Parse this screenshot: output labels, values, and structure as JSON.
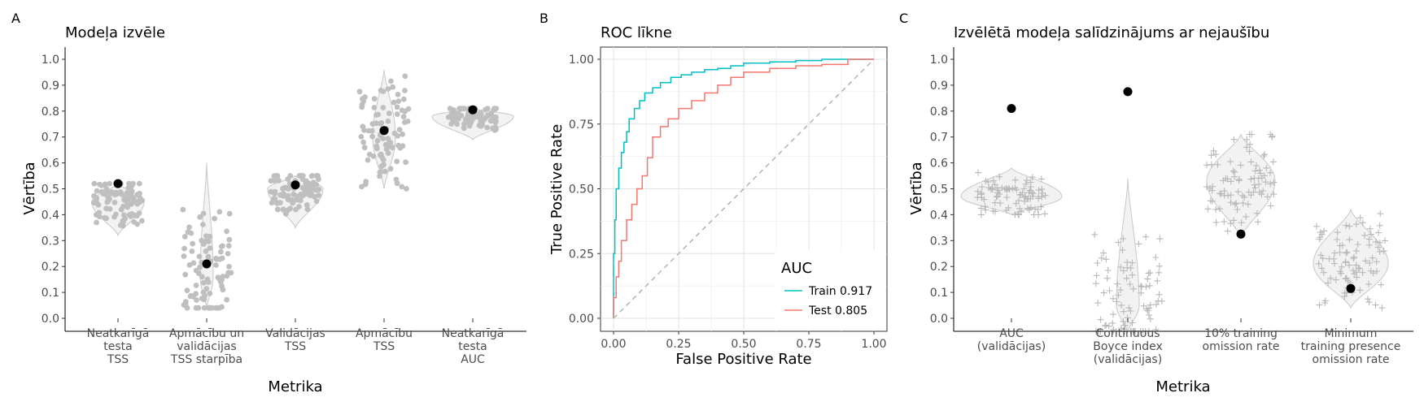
{
  "panels": {
    "A": {
      "tag": "A",
      "title": "Modeļa izvēle",
      "xlabel": "Metrika",
      "ylabel": "Vērtība",
      "yticks": [
        "0.0",
        "0.1",
        "0.2",
        "0.3",
        "0.4",
        "0.5",
        "0.6",
        "0.7",
        "0.8",
        "0.9",
        "1.0"
      ],
      "categories": [
        [
          "Neatkarīgā",
          "testa",
          "TSS"
        ],
        [
          "Apmācību un",
          "validācijas",
          "TSS starpība"
        ],
        [
          "Validācijas",
          "TSS"
        ],
        [
          "Apmācību",
          "TSS"
        ],
        [
          "Neatkarīgā",
          "testa",
          "AUC"
        ]
      ]
    },
    "B": {
      "tag": "B",
      "title": "ROC līkne",
      "xlabel": "False Positive Rate",
      "ylabel": "True Positive Rate",
      "xticks": [
        "0.00",
        "0.25",
        "0.50",
        "0.75",
        "1.00"
      ],
      "yticks": [
        "0.00",
        "0.25",
        "0.50",
        "0.75",
        "1.00"
      ],
      "legend_title": "AUC",
      "legend_items": [
        "Train 0.917",
        "Test 0.805"
      ]
    },
    "C": {
      "tag": "C",
      "title": "Izvēlētā modeļa salīdzinājums ar nejaušību",
      "xlabel": "Metrika",
      "ylabel": "Vērtība",
      "yticks": [
        "0.0",
        "0.1",
        "0.2",
        "0.3",
        "0.4",
        "0.5",
        "0.6",
        "0.7",
        "0.8",
        "0.9",
        "1.0"
      ],
      "categories": [
        [
          "AUC",
          "(validācijas)"
        ],
        [
          "Continuous",
          "Boyce index",
          "(validācijas)"
        ],
        [
          "10% training",
          "omission rate"
        ],
        [
          "Minimum",
          "training presence",
          "omission rate"
        ]
      ]
    }
  },
  "chart_data": [
    {
      "type": "violin",
      "panel": "A",
      "title": "Modeļa izvēle",
      "xlabel": "Metrika",
      "ylabel": "Vērtība",
      "ylim": [
        0,
        1
      ],
      "grid": false,
      "categories": [
        "Neatkarīgā testa TSS",
        "Apmācību un validācijas TSS starpība",
        "Validācijas TSS",
        "Apmācību TSS",
        "Neatkarīgā testa AUC"
      ],
      "distribution_ranges": [
        [
          0.32,
          0.52
        ],
        [
          0.04,
          0.6
        ],
        [
          0.35,
          0.55
        ],
        [
          0.5,
          0.96
        ],
        [
          0.69,
          0.81
        ]
      ],
      "distribution_centers": [
        0.45,
        0.16,
        0.5,
        0.7,
        0.78
      ],
      "selected_values": [
        0.52,
        0.21,
        0.515,
        0.725,
        0.805
      ],
      "point_color": "#bfbfbf",
      "selected_color": "#000000"
    },
    {
      "type": "line",
      "panel": "B",
      "title": "ROC līkne",
      "xlabel": "False Positive Rate",
      "ylabel": "True Positive Rate",
      "xlim": [
        0,
        1
      ],
      "ylim": [
        0,
        1
      ],
      "grid": true,
      "legend_title": "AUC",
      "legend_position": "bottom-right",
      "series": [
        {
          "name": "Train 0.917",
          "color": "#00BFC4",
          "x": [
            0,
            0.005,
            0.01,
            0.02,
            0.03,
            0.04,
            0.05,
            0.06,
            0.08,
            0.1,
            0.12,
            0.15,
            0.18,
            0.22,
            0.26,
            0.3,
            0.35,
            0.4,
            0.45,
            0.5,
            0.6,
            0.7,
            0.8,
            0.9,
            1.0
          ],
          "y": [
            0,
            0.25,
            0.38,
            0.5,
            0.58,
            0.64,
            0.68,
            0.72,
            0.77,
            0.81,
            0.84,
            0.87,
            0.89,
            0.91,
            0.93,
            0.94,
            0.95,
            0.96,
            0.965,
            0.975,
            0.985,
            0.99,
            0.995,
            1.0,
            1.0
          ]
        },
        {
          "name": "Test 0.805",
          "color": "#F8766D",
          "x": [
            0,
            0.01,
            0.02,
            0.03,
            0.05,
            0.07,
            0.09,
            0.11,
            0.13,
            0.15,
            0.18,
            0.21,
            0.25,
            0.3,
            0.35,
            0.4,
            0.45,
            0.5,
            0.6,
            0.7,
            0.8,
            0.9,
            1.0
          ],
          "y": [
            0,
            0.08,
            0.16,
            0.22,
            0.3,
            0.38,
            0.44,
            0.5,
            0.55,
            0.62,
            0.7,
            0.74,
            0.77,
            0.81,
            0.84,
            0.87,
            0.9,
            0.93,
            0.95,
            0.965,
            0.975,
            0.98,
            1.0
          ]
        },
        {
          "name": "",
          "color": "#b3b3b3",
          "dashed": true,
          "x": [
            0,
            1
          ],
          "y": [
            0,
            1
          ]
        }
      ]
    },
    {
      "type": "violin",
      "panel": "C",
      "title": "Izvēlētā modeļa salīdzinājums ar nejaušību",
      "xlabel": "Metrika",
      "ylabel": "Vērtība",
      "ylim": [
        0,
        1
      ],
      "grid": false,
      "categories": [
        "AUC (validācijas)",
        "Continuous Boyce index (validācijas)",
        "10% training omission rate",
        "Minimum training presence omission rate"
      ],
      "distribution_ranges": [
        [
          0.4,
          0.58
        ],
        [
          -0.05,
          0.54
        ],
        [
          0.31,
          0.71
        ],
        [
          0.04,
          0.42
        ]
      ],
      "distribution_centers": [
        0.47,
        0.05,
        0.53,
        0.21
      ],
      "selected_values": [
        0.81,
        0.875,
        0.325,
        0.115
      ],
      "point_color": "#bfbfbf",
      "selected_color": "#000000"
    }
  ]
}
